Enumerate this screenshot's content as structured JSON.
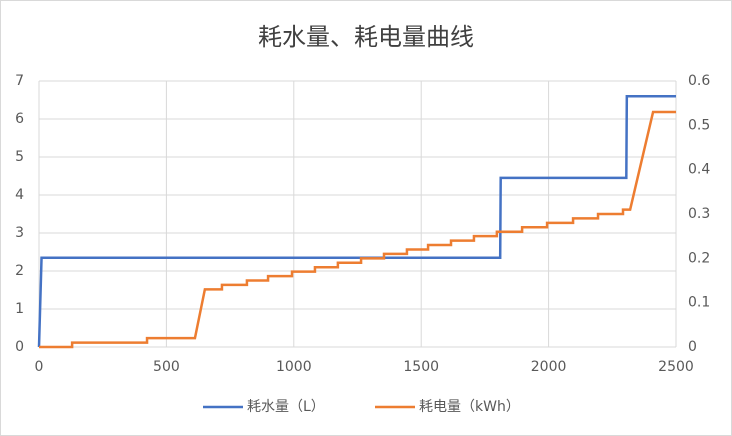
{
  "chart_data": {
    "type": "line",
    "title": "耗水量、耗电量曲线",
    "xlim": [
      0,
      2500
    ],
    "xticks": [
      0,
      500,
      1000,
      1500,
      2000,
      2500
    ],
    "ylim": [
      0,
      7
    ],
    "yticks": [
      0,
      1,
      2,
      3,
      4,
      5,
      6,
      7
    ],
    "y2lim": [
      0,
      0.6
    ],
    "y2ticks": [
      0,
      0.1,
      0.2,
      0.3,
      0.4,
      0.5,
      0.6
    ],
    "grid": true,
    "legend": "bottom",
    "series": [
      {
        "name": "耗水量（L）",
        "color": "#4472c4",
        "x": [
          0,
          10,
          1810,
          1812,
          2305,
          2307,
          2500
        ],
        "values": [
          0,
          2.35,
          2.35,
          4.45,
          4.45,
          6.6,
          6.6
        ]
      },
      {
        "name": "耗电量（kWh）",
        "color": "#ed7d31",
        "axis": "y2",
        "x": [
          0,
          130,
          130,
          424,
          424,
          612,
          651,
          718,
          718,
          816,
          816,
          899,
          899,
          993,
          993,
          1083,
          1083,
          1173,
          1173,
          1264,
          1264,
          1354,
          1354,
          1444,
          1444,
          1527,
          1527,
          1617,
          1617,
          1707,
          1707,
          1797,
          1797,
          1896,
          1896,
          1994,
          1994,
          2096,
          2096,
          2194,
          2194,
          2292,
          2292,
          2320,
          2410,
          2500
        ],
        "values": [
          0,
          0,
          0.01,
          0.01,
          0.02,
          0.02,
          0.13,
          0.13,
          0.14,
          0.14,
          0.15,
          0.15,
          0.16,
          0.16,
          0.17,
          0.17,
          0.18,
          0.18,
          0.19,
          0.19,
          0.2,
          0.2,
          0.21,
          0.21,
          0.22,
          0.22,
          0.23,
          0.23,
          0.24,
          0.24,
          0.25,
          0.25,
          0.26,
          0.26,
          0.27,
          0.27,
          0.28,
          0.28,
          0.29,
          0.29,
          0.3,
          0.3,
          0.31,
          0.31,
          0.53,
          0.53
        ]
      }
    ]
  }
}
